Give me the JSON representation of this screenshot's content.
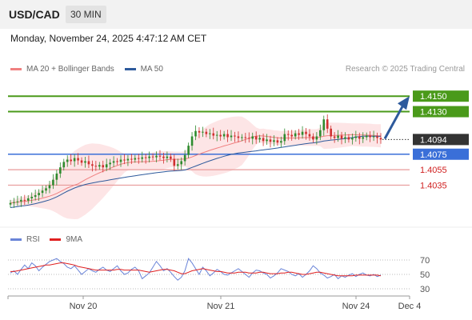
{
  "header": {
    "symbol": "USD/CAD",
    "timeframe": "30 MIN",
    "datetime": "Monday, November 24, 2025 4:47:12 AM CET"
  },
  "legend_main": [
    {
      "label": "MA 20 + Bollinger Bands",
      "color": "#f08080"
    },
    {
      "label": "MA 50",
      "color": "#2e5a9c"
    }
  ],
  "legend_rsi": [
    {
      "label": "RSI",
      "color": "#6a84d8"
    },
    {
      "label": "9MA",
      "color": "#e02020"
    }
  ],
  "credit": "Research © 2025 Trading Central",
  "colors": {
    "resistance": "#4a9a1a",
    "pivot": "#3a6fd8",
    "support": "#e89a9a",
    "candle_up": "#2e8b2e",
    "candle_down": "#d03030",
    "band_fill": "#fde0e2",
    "arrow": "#2e5a9c",
    "current": "#333333"
  },
  "chart_data": [
    {
      "type": "candlestick",
      "title": "USD/CAD 30 MIN",
      "x_ticks": [
        "Nov 20",
        "Nov 21",
        "Nov 24",
        "Dec 4"
      ],
      "ylim": [
        1.399,
        1.4175
      ],
      "levels": [
        {
          "label": "1.4150",
          "value": 1.415,
          "kind": "resistance"
        },
        {
          "label": "1.4130",
          "value": 1.413,
          "kind": "resistance"
        },
        {
          "label": "1.4094",
          "value": 1.4094,
          "kind": "current"
        },
        {
          "label": "1.4075",
          "value": 1.4075,
          "kind": "pivot"
        },
        {
          "label": "1.4055",
          "value": 1.4055,
          "kind": "support"
        },
        {
          "label": "1.4035",
          "value": 1.4035,
          "kind": "support"
        }
      ],
      "close_series": [
        1.4012,
        1.4013,
        1.4014,
        1.4016,
        1.4015,
        1.4018,
        1.402,
        1.4022,
        1.4025,
        1.4028,
        1.4031,
        1.4035,
        1.4042,
        1.405,
        1.4058,
        1.4065,
        1.4068,
        1.4066,
        1.407,
        1.4067,
        1.4064,
        1.4066,
        1.4062,
        1.406,
        1.4059,
        1.4061,
        1.4058,
        1.4062,
        1.4064,
        1.4066,
        1.4065,
        1.4068,
        1.4067,
        1.4069,
        1.4068,
        1.407,
        1.4069,
        1.4071,
        1.407,
        1.4072,
        1.4071,
        1.4073,
        1.4072,
        1.407,
        1.4072,
        1.4069,
        1.406,
        1.4062,
        1.4066,
        1.4074,
        1.4086,
        1.4098,
        1.4105,
        1.4103,
        1.4104,
        1.4101,
        1.4102,
        1.4099,
        1.41,
        1.4098,
        1.4101,
        1.4097,
        1.4099,
        1.4098,
        1.4096,
        1.4097,
        1.4096,
        1.4095,
        1.4098,
        1.4094,
        1.4096,
        1.4092,
        1.4094,
        1.4091,
        1.4093,
        1.409,
        1.4092,
        1.4101,
        1.41,
        1.4098,
        1.4102,
        1.41,
        1.4104,
        1.4101,
        1.4098,
        1.4094,
        1.4098,
        1.4106,
        1.412,
        1.4108,
        1.4098,
        1.4096,
        1.4099,
        1.4095,
        1.4097,
        1.4094,
        1.4096,
        1.4098,
        1.4095,
        1.4097,
        1.4099,
        1.4097,
        1.4098,
        1.4096,
        1.4094
      ],
      "series": [
        {
          "name": "MA 20 + Bollinger Bands"
        },
        {
          "name": "MA 50"
        }
      ],
      "projection": {
        "from": 1.4094,
        "to": 1.415
      }
    },
    {
      "type": "line",
      "title": "RSI",
      "ylim": [
        20,
        80
      ],
      "y_ticks": [
        70,
        50,
        30
      ],
      "series": [
        {
          "name": "RSI",
          "values": [
            52,
            55,
            50,
            57,
            63,
            58,
            66,
            62,
            55,
            60,
            64,
            68,
            70,
            72,
            68,
            65,
            60,
            58,
            62,
            56,
            50,
            54,
            58,
            55,
            53,
            57,
            60,
            56,
            54,
            58,
            62,
            55,
            50,
            52,
            57,
            60,
            55,
            44,
            48,
            52,
            60,
            68,
            62,
            55,
            58,
            53,
            47,
            42,
            46,
            55,
            72,
            66,
            58,
            50,
            60,
            55,
            48,
            52,
            57,
            54,
            50,
            49,
            52,
            55,
            58,
            54,
            50,
            46,
            52,
            56,
            55,
            52,
            50,
            45,
            48,
            52,
            58,
            56,
            54,
            50,
            48,
            51,
            46,
            50,
            55,
            62,
            58,
            52,
            49,
            45,
            47,
            50,
            44,
            48,
            46,
            49,
            51,
            47,
            50,
            52,
            49,
            48,
            50,
            47,
            49
          ]
        },
        {
          "name": "9MA",
          "values": [
            54,
            54,
            55,
            56,
            57,
            58,
            59,
            60,
            61,
            62,
            63,
            63,
            64,
            65,
            66,
            66,
            65,
            64,
            63,
            61,
            60,
            59,
            58,
            57,
            56,
            56,
            56,
            56,
            56,
            56,
            57,
            57,
            56,
            56,
            56,
            56,
            56,
            55,
            54,
            53,
            54,
            55,
            56,
            57,
            57,
            56,
            55,
            53,
            51,
            51,
            53,
            55,
            56,
            57,
            58,
            57,
            56,
            55,
            54,
            54,
            53,
            52,
            52,
            52,
            53,
            53,
            53,
            52,
            52,
            52,
            53,
            53,
            52,
            51,
            51,
            51,
            52,
            52,
            53,
            53,
            52,
            51,
            50,
            50,
            51,
            52,
            53,
            53,
            52,
            51,
            50,
            49,
            48,
            48,
            48,
            48,
            48,
            49,
            49,
            49,
            49,
            49,
            49,
            49,
            48
          ]
        }
      ]
    }
  ]
}
